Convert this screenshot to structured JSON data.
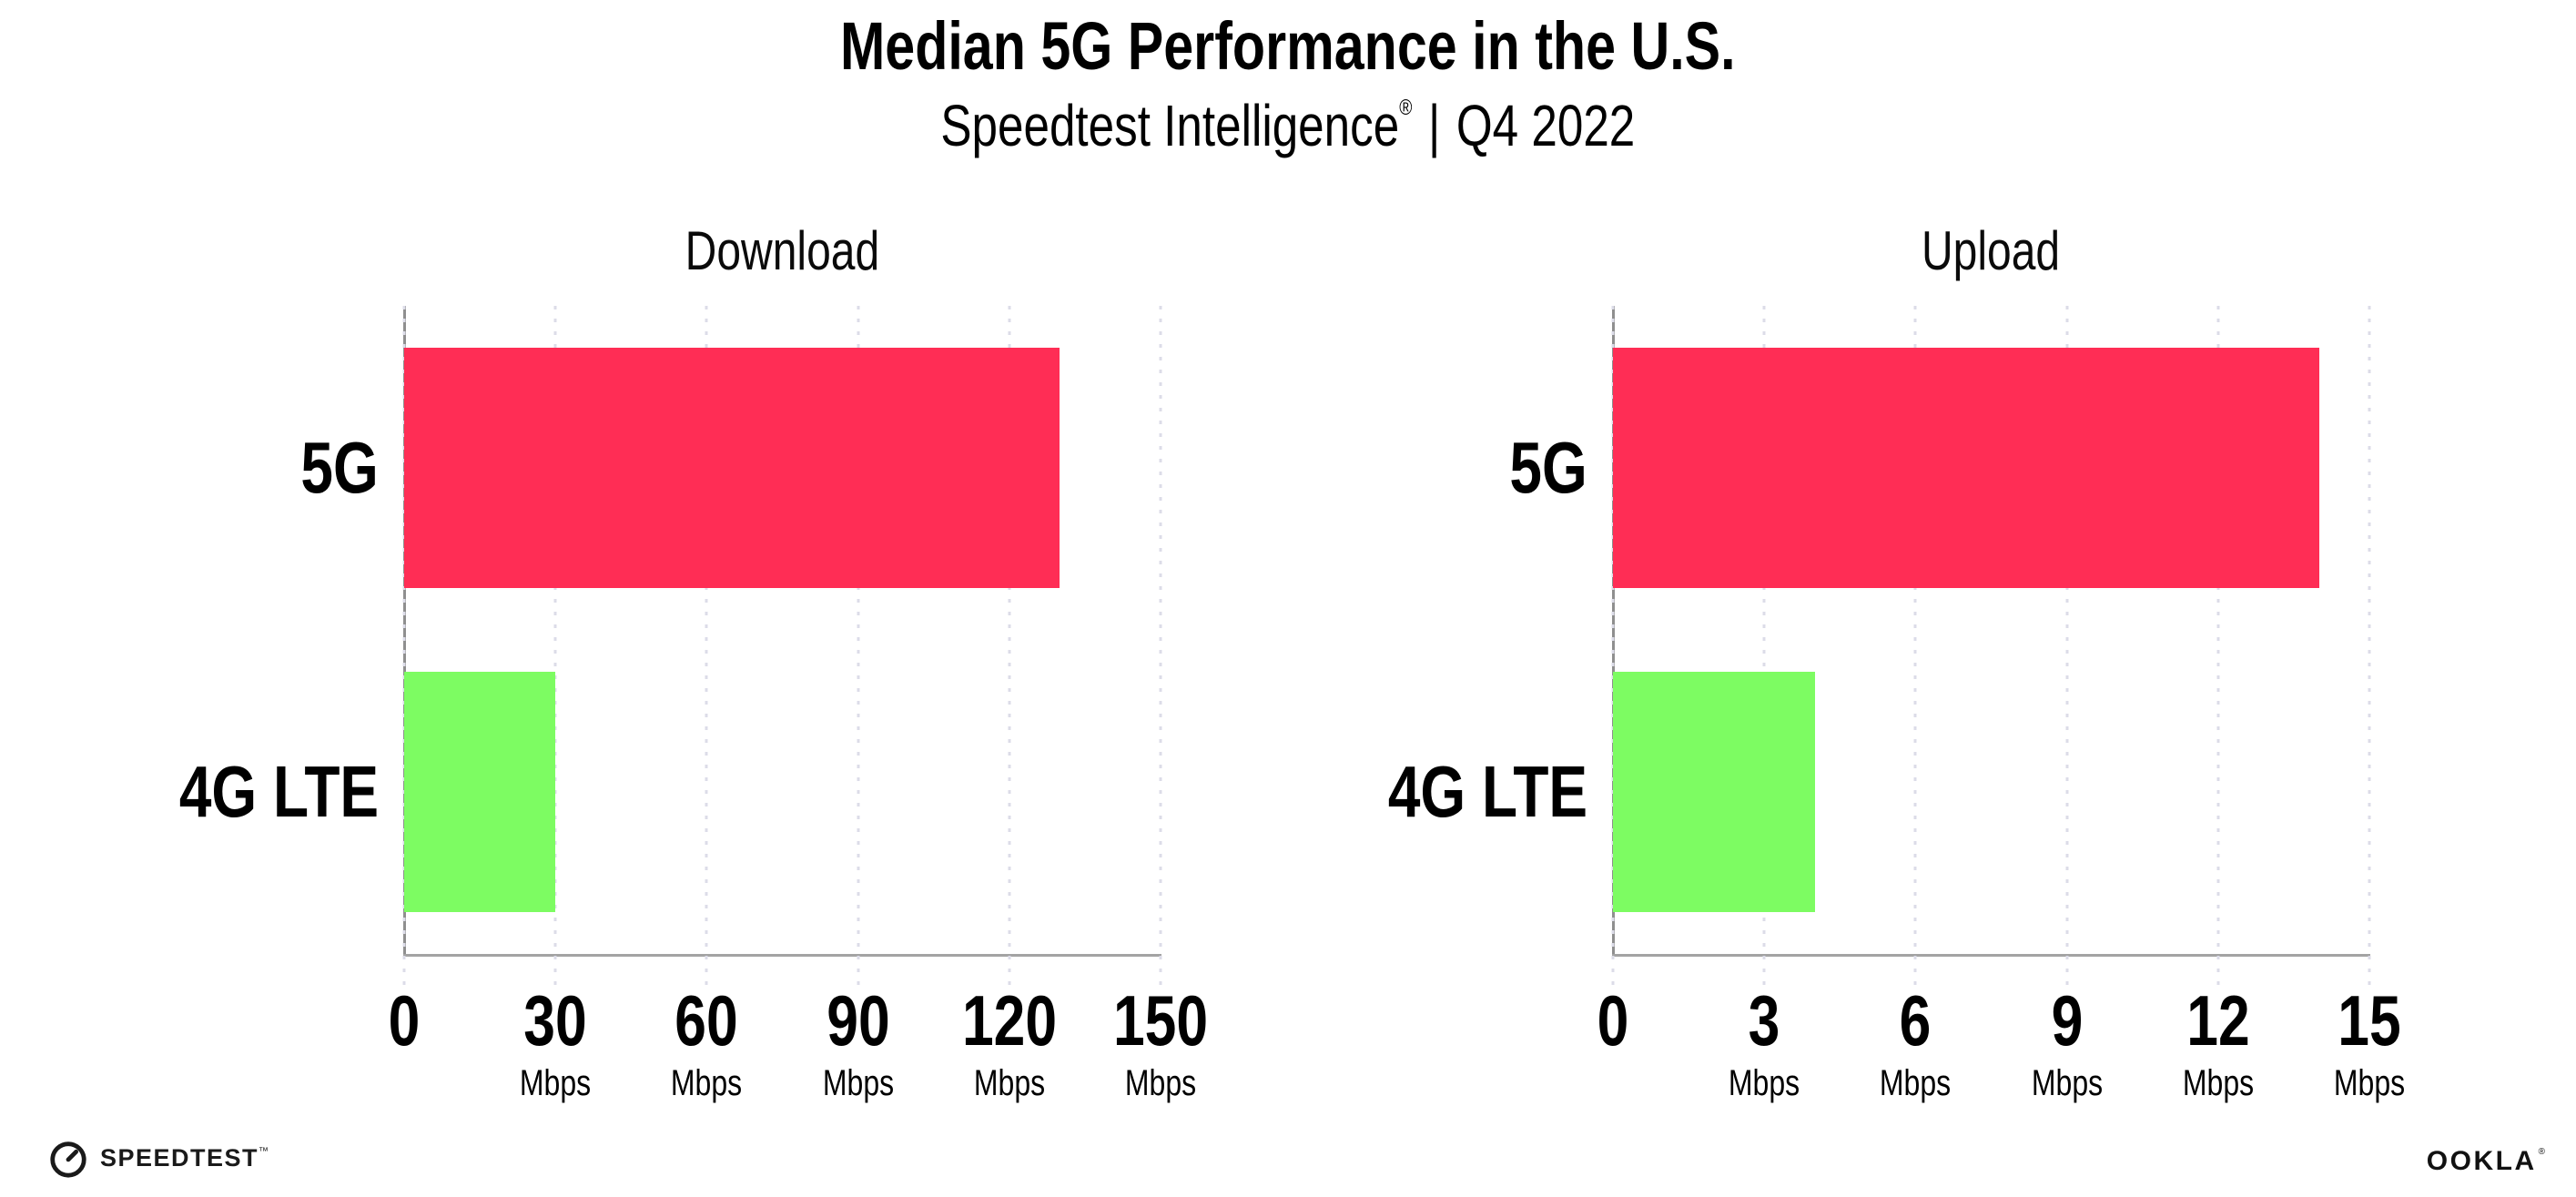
{
  "header": {
    "title": "Median 5G Performance in the U.S.",
    "subtitle_product": "Speedtest Intelligence",
    "subtitle_registered": "®",
    "subtitle_separator": "|",
    "subtitle_period": "Q4 2022"
  },
  "chart_data": [
    {
      "type": "bar",
      "orientation": "horizontal",
      "title": "Download",
      "categories": [
        "5G",
        "4G LTE"
      ],
      "values": [
        130,
        30
      ],
      "value_unit": "Mbps",
      "xlim": [
        0,
        150
      ],
      "xticks": [
        0,
        30,
        60,
        90,
        120,
        150
      ],
      "xtick_unit": "Mbps",
      "bar_colors": [
        "#FF2D55",
        "#7DFC62"
      ],
      "grid": "vertical-dotted",
      "legend": "none"
    },
    {
      "type": "bar",
      "orientation": "horizontal",
      "title": "Upload",
      "categories": [
        "5G",
        "4G LTE"
      ],
      "values": [
        14,
        4
      ],
      "value_unit": "Mbps",
      "xlim": [
        0,
        15
      ],
      "xticks": [
        0,
        3,
        6,
        9,
        12,
        15
      ],
      "xtick_unit": "Mbps",
      "bar_colors": [
        "#FF2D55",
        "#7DFC62"
      ],
      "grid": "vertical-dotted",
      "legend": "none"
    }
  ],
  "footer": {
    "speedtest_wordmark": "SPEEDTEST",
    "speedtest_trademark": "™",
    "ookla_wordmark": "OOKLA",
    "ookla_registered": "®"
  },
  "colors": {
    "bar_5g": "#FF2D55",
    "bar_4g_lte": "#7DFC62",
    "spine": "#8F8F8F",
    "axis_line": "#A3A3A3",
    "gridline": "#DCDCE8",
    "text": "#000000",
    "background": "#FFFFFF"
  }
}
